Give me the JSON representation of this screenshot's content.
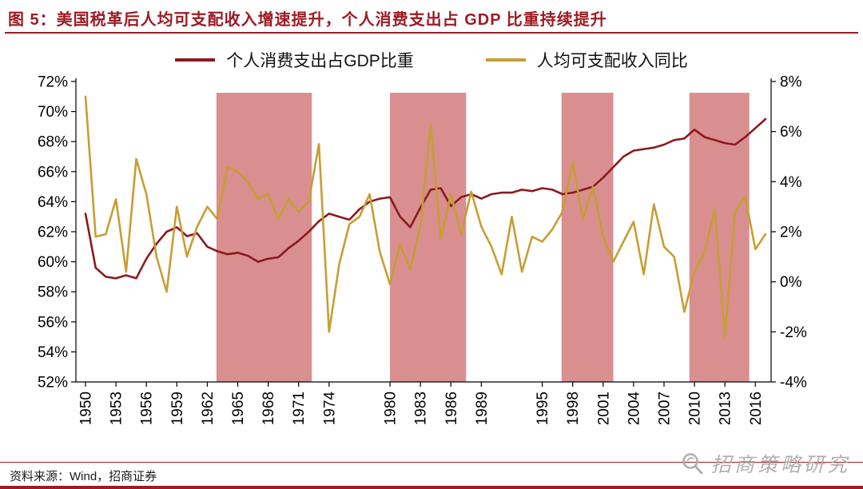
{
  "header": {
    "title": "图 5：美国税革后人均可支配收入增速提升，个人消费支出占 GDP 比重持续提升"
  },
  "footer": {
    "source": "资料来源：Wind，招商证券"
  },
  "watermark": {
    "text": "招商策略研究"
  },
  "colors": {
    "title_red": "#9E1B23",
    "consumption_line": "#8C1A1E",
    "income_line": "#C79E33",
    "band_pink": "#D98F90",
    "watermark_gray": "#A9A9A9"
  },
  "chart_data": {
    "type": "line",
    "title": "",
    "xlabel": "",
    "ylabel_left": "个人消费支出占GDP比重 (%)",
    "ylabel_right": "人均可支配收入同比 (%)",
    "grid": false,
    "legend_position": "top",
    "x": [
      1950,
      1951,
      1952,
      1953,
      1954,
      1955,
      1956,
      1957,
      1958,
      1959,
      1960,
      1961,
      1962,
      1963,
      1964,
      1965,
      1966,
      1967,
      1968,
      1969,
      1970,
      1971,
      1972,
      1973,
      1974,
      1975,
      1976,
      1977,
      1978,
      1979,
      1980,
      1981,
      1982,
      1983,
      1984,
      1985,
      1986,
      1987,
      1988,
      1989,
      1990,
      1991,
      1992,
      1993,
      1994,
      1995,
      1996,
      1997,
      1998,
      1999,
      2000,
      2001,
      2002,
      2003,
      2004,
      2005,
      2006,
      2007,
      2008,
      2009,
      2010,
      2011,
      2012,
      2013,
      2014,
      2015,
      2016,
      2017
    ],
    "series": [
      {
        "name": "个人消费支出占GDP比重",
        "axis": "left",
        "color": "#8C1A1E",
        "values": [
          63.2,
          59.6,
          59.0,
          58.9,
          59.1,
          58.9,
          60.2,
          61.2,
          62.0,
          62.3,
          61.7,
          61.9,
          61.0,
          60.7,
          60.5,
          60.6,
          60.4,
          60.0,
          60.2,
          60.3,
          60.9,
          61.4,
          62.0,
          62.7,
          63.2,
          63.0,
          62.8,
          63.5,
          64.0,
          64.2,
          64.3,
          63.0,
          62.3,
          63.6,
          64.8,
          64.9,
          63.7,
          64.3,
          64.5,
          64.2,
          64.5,
          64.6,
          64.6,
          64.8,
          64.7,
          64.9,
          64.8,
          64.5,
          64.6,
          64.8,
          65.0,
          65.6,
          66.3,
          67.0,
          67.4,
          67.5,
          67.6,
          67.8,
          68.1,
          68.2,
          68.8,
          68.3,
          68.1,
          67.9,
          67.8,
          68.3,
          68.9,
          69.5
        ]
      },
      {
        "name": "人均可支配收入同比",
        "axis": "right",
        "color": "#C79E33",
        "values": [
          7.4,
          1.8,
          1.9,
          3.3,
          0.4,
          4.9,
          3.5,
          1.0,
          -0.4,
          3.0,
          1.0,
          2.2,
          3.0,
          2.5,
          4.6,
          4.4,
          4.0,
          3.3,
          3.5,
          2.5,
          3.3,
          2.8,
          3.2,
          5.5,
          -2.0,
          0.7,
          2.3,
          2.6,
          3.5,
          1.2,
          -0.1,
          1.5,
          0.5,
          2.2,
          6.3,
          1.7,
          3.5,
          1.9,
          3.6,
          2.2,
          1.4,
          0.3,
          2.6,
          0.4,
          1.8,
          1.6,
          2.1,
          2.8,
          4.8,
          2.5,
          3.8,
          1.8,
          0.8,
          1.6,
          2.4,
          0.3,
          3.1,
          1.4,
          1.0,
          -1.2,
          0.4,
          1.2,
          2.9,
          -2.2,
          2.8,
          3.4,
          1.3,
          1.9
        ]
      }
    ],
    "left_axis": {
      "min": 52,
      "max": 72,
      "step": 2,
      "unit": "%"
    },
    "right_axis": {
      "min": -4,
      "max": 8,
      "step": 2,
      "unit": "%"
    },
    "x_tick_labels": [
      "1950",
      "1953",
      "1956",
      "1959",
      "1962",
      "1965",
      "1968",
      "1971",
      "1974",
      "1980",
      "1983",
      "1986",
      "1989",
      "1995",
      "1998",
      "2001",
      "2004",
      "2007",
      "2010",
      "2013",
      "2016"
    ],
    "shaded_bands": [
      [
        1962.9,
        1972.3
      ],
      [
        1980.0,
        1987.5
      ],
      [
        1996.9,
        2002.0
      ],
      [
        2009.5,
        2015.4
      ]
    ],
    "band_color": "#D98F90"
  }
}
